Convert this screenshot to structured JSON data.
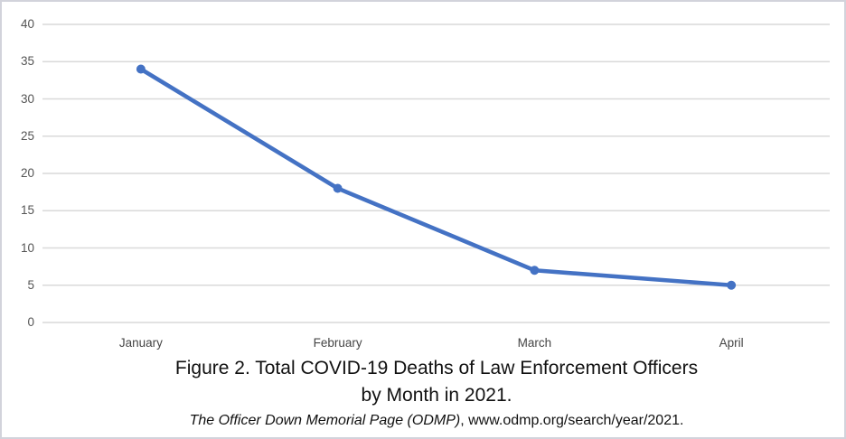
{
  "chart_data": {
    "type": "line",
    "categories": [
      "January",
      "February",
      "March",
      "April"
    ],
    "series": [
      {
        "name": "COVID-19 deaths of law enforcement officers",
        "values": [
          34,
          18,
          7,
          5
        ]
      }
    ],
    "title": "Figure 2. Total COVID-19 Deaths of Law Enforcement Officers by Month in 2021.",
    "xlabel": "",
    "ylabel": "",
    "ylim": [
      0,
      40
    ],
    "yticks": [
      0,
      5,
      10,
      15,
      20,
      25,
      30,
      35,
      40
    ],
    "grid": "horizontal",
    "legend_position": "none",
    "line_color": "#4472C4",
    "marker": "circle"
  },
  "caption": {
    "title_line1": "Figure 2. Total COVID-19 Deaths of Law Enforcement Officers",
    "title_line2": "by Month in 2021.",
    "source_italic": "The Officer Down Memorial Page (ODMP)",
    "source_regular": ", www.odmp.org/search/year/2021."
  },
  "colors": {
    "line": "#4472C4",
    "marker": "#4472C4",
    "gridline": "#d9d9d9",
    "ytick_text": "#555555",
    "xtick_text": "#454545",
    "border": "#d2d3db"
  }
}
